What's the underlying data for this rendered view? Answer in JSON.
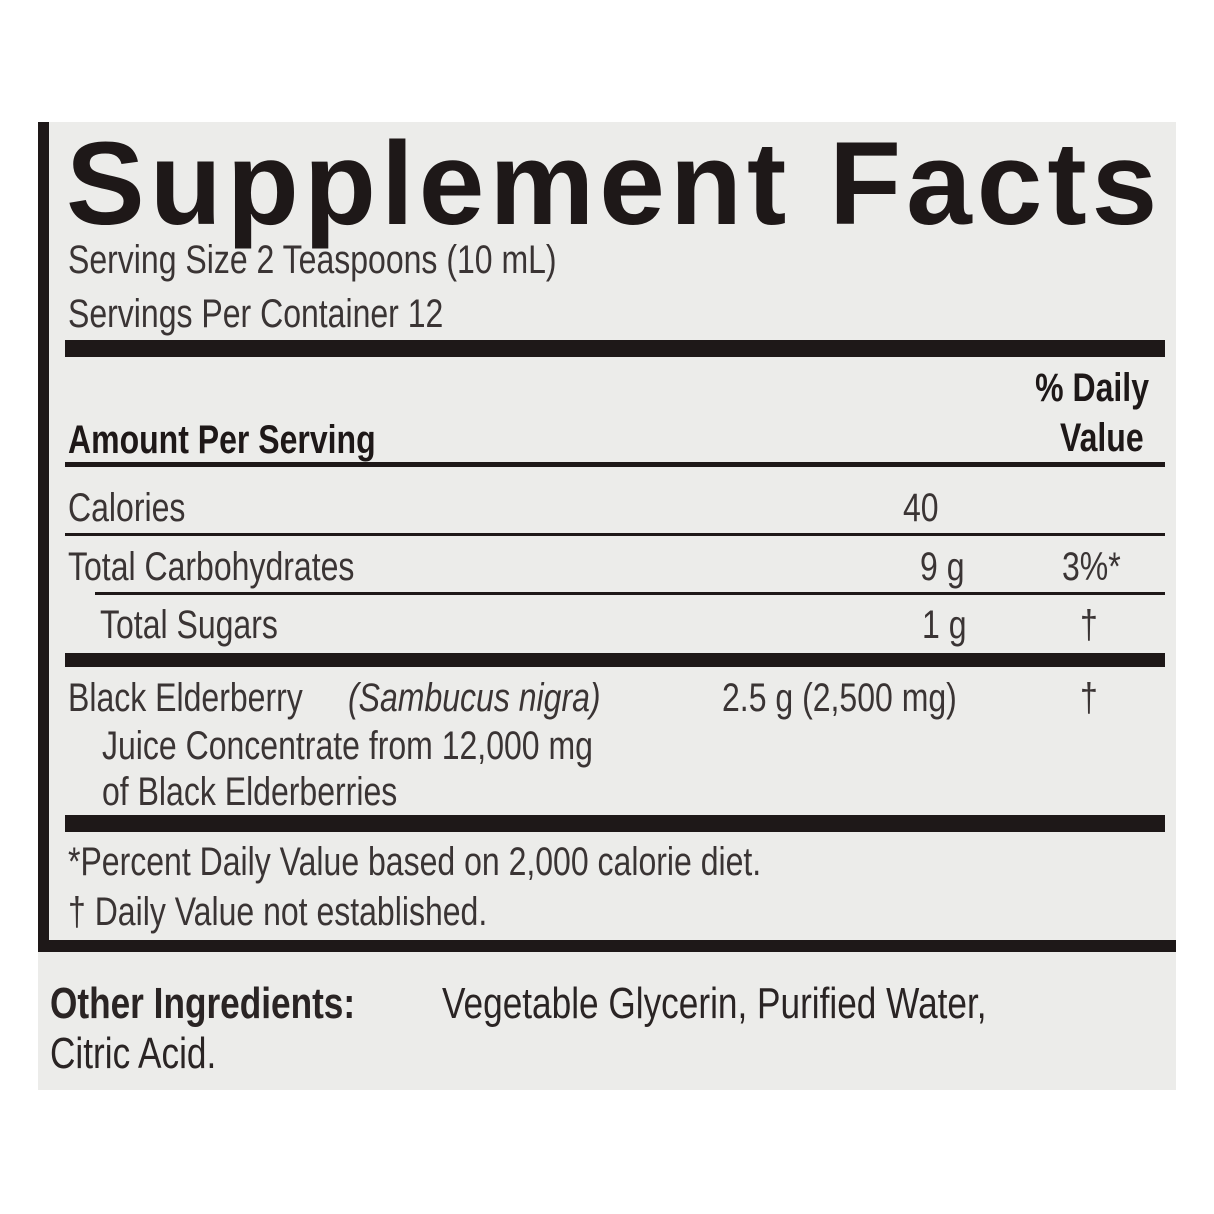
{
  "title": "Supplement Facts",
  "serving_size": "Serving Size 2 Teaspoons (10 mL)",
  "servings_per_container": "Servings Per Container 12",
  "header": {
    "amount_per_serving": "Amount Per Serving",
    "dv_line1": "% Daily",
    "dv_line2": "Value"
  },
  "rows": [
    {
      "name": "Calories",
      "amount": "40",
      "dv": ""
    },
    {
      "name": "Total Carbohydrates",
      "amount": "9 g",
      "dv": "3%*"
    },
    {
      "name": "Total Sugars",
      "amount": "1 g",
      "dv": "†"
    },
    {
      "name": "Black Elderberry",
      "name_italic": "(Sambucus nigra)",
      "line2": "Juice Concentrate from 12,000 mg",
      "line3": "of Black Elderberries",
      "amount": "2.5 g (2,500 mg)",
      "dv": "†"
    }
  ],
  "footnotes": [
    "*Percent Daily Value based on 2,000 calorie diet.",
    "† Daily Value not established."
  ],
  "other_ingredients": {
    "label": "Other Ingredients:",
    "text1": "Vegetable Glycerin, Purified Water,",
    "text2": "Citric Acid."
  },
  "colors": {
    "text": "#2a2424",
    "accent": "#2e8b3a",
    "panel": "#ececea"
  }
}
